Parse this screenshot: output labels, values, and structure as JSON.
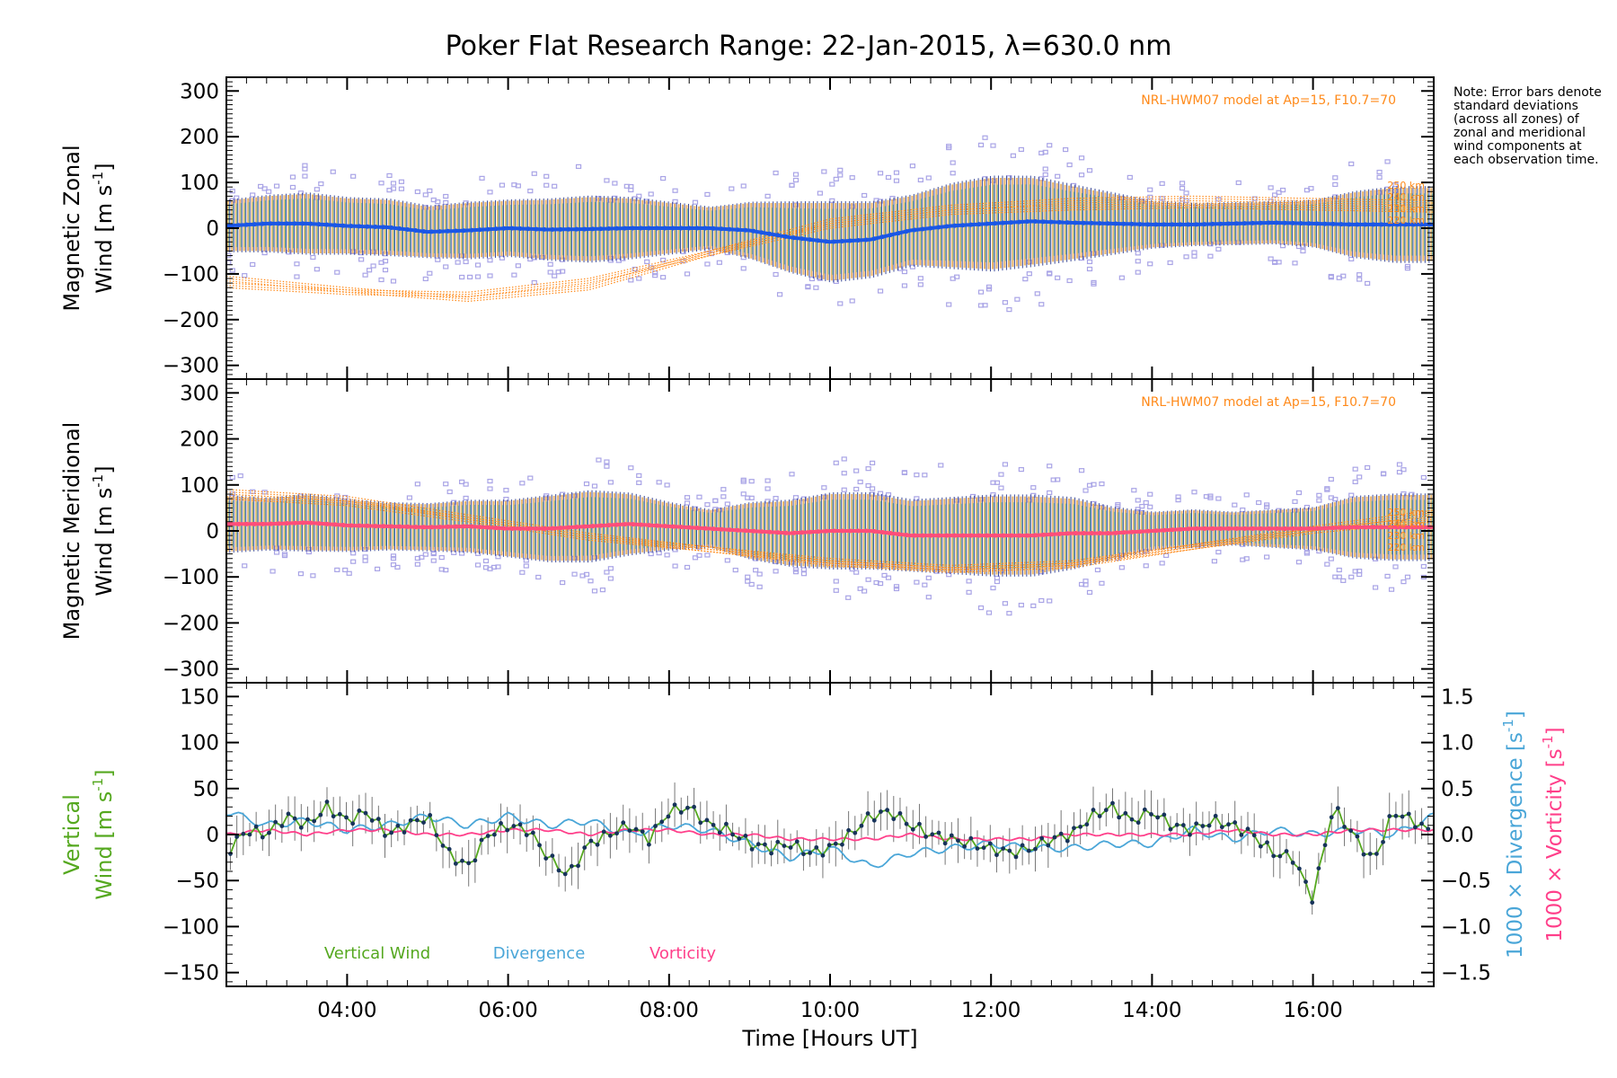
{
  "title": "Poker Flat Research Range: 22-Jan-2015, λ=630.0 nm",
  "note": "Note: Error bars denote standard deviations (across all zones) of zonal and meridional wind components at each observation time.",
  "colors": {
    "zonal": "#1a56e6",
    "zonal_light": "#4fb0e8",
    "meridional": "#ff4d7a",
    "vertical": "#55a81f",
    "divergence": "#4aa6d8",
    "vorticity": "#ff3f8a",
    "model": "#ff8a1a",
    "scatter": "#a9a4e6",
    "points": "#17335a"
  },
  "chart_data": [
    {
      "type": "scatter",
      "panel": "zonal",
      "ylabel_line1": "Magnetic Zonal",
      "ylabel_line2": "Wind [m s",
      "ylabel_sup": "-1",
      "ylabel_end": "]",
      "ylim": [
        -330,
        330
      ],
      "yticks": [
        "300",
        "200",
        "100",
        "0",
        "−100",
        "−200",
        "−300"
      ],
      "ytick_values": [
        300,
        200,
        100,
        0,
        -100,
        -200,
        -300
      ],
      "model_note": "NRL-HWM07 model at Ap=15, F10.7=70",
      "model_labels": [
        "250 km",
        "240 km",
        "230 km",
        "220 km"
      ],
      "xlim_hours": [
        2.5,
        17.5
      ],
      "series": [
        {
          "name": "Magnetic Zonal Wind",
          "x": [
            2.5,
            3.0,
            3.5,
            4.0,
            4.5,
            5.0,
            5.5,
            6.0,
            6.5,
            7.0,
            7.5,
            8.0,
            8.5,
            9.0,
            9.5,
            10.0,
            10.5,
            11.0,
            11.5,
            12.0,
            12.5,
            13.0,
            13.5,
            14.0,
            14.5,
            15.0,
            15.5,
            16.0,
            16.5,
            17.0,
            17.5
          ],
          "y": [
            5,
            10,
            10,
            5,
            2,
            -8,
            -5,
            0,
            -3,
            -2,
            0,
            0,
            0,
            -5,
            -20,
            -30,
            -25,
            -5,
            5,
            10,
            15,
            12,
            10,
            8,
            8,
            10,
            12,
            10,
            8,
            8,
            8
          ],
          "error": [
            55,
            60,
            65,
            60,
            60,
            55,
            60,
            60,
            65,
            70,
            65,
            55,
            45,
            60,
            75,
            85,
            80,
            75,
            90,
            100,
            95,
            80,
            65,
            50,
            45,
            45,
            45,
            50,
            70,
            80,
            80
          ]
        },
        {
          "name": "NRL-HWM07 220 km",
          "x": [
            2.5,
            4.0,
            5.5,
            7.0,
            8.5,
            10.0,
            11.5,
            13.0,
            14.5,
            16.0,
            17.5
          ],
          "y": [
            -130,
            -145,
            -150,
            -120,
            -60,
            0,
            30,
            40,
            45,
            40,
            35
          ]
        },
        {
          "name": "NRL-HWM07 250 km",
          "x": [
            2.5,
            4.0,
            5.5,
            7.0,
            8.5,
            10.0,
            11.5,
            13.0,
            14.5,
            16.0,
            17.5
          ],
          "y": [
            -115,
            -140,
            -160,
            -135,
            -60,
            10,
            40,
            55,
            60,
            55,
            50
          ]
        }
      ]
    },
    {
      "type": "scatter",
      "panel": "meridional",
      "ylabel_line1": "Magnetic Meridional",
      "ylabel_line2": "Wind [m s",
      "ylabel_sup": "-1",
      "ylabel_end": "]",
      "ylim": [
        -330,
        330
      ],
      "yticks": [
        "300",
        "200",
        "100",
        "0",
        "−100",
        "−200",
        "−300"
      ],
      "ytick_values": [
        300,
        200,
        100,
        0,
        -100,
        -200,
        -300
      ],
      "model_note": "NRL-HWM07 model at Ap=15, F10.7=70",
      "model_labels": [
        "250 km",
        "240 km",
        "230 km",
        "220 km"
      ],
      "xlim_hours": [
        2.5,
        17.5
      ],
      "series": [
        {
          "name": "Magnetic Meridional Wind",
          "x": [
            2.5,
            3.0,
            3.5,
            4.0,
            4.5,
            5.0,
            5.5,
            6.0,
            6.5,
            7.0,
            7.5,
            8.0,
            8.5,
            9.0,
            9.5,
            10.0,
            10.5,
            11.0,
            11.5,
            12.0,
            12.5,
            13.0,
            13.5,
            14.0,
            14.5,
            15.0,
            15.5,
            16.0,
            16.5,
            17.0,
            17.5
          ],
          "y": [
            15,
            15,
            18,
            12,
            10,
            8,
            10,
            5,
            5,
            10,
            15,
            10,
            5,
            0,
            -5,
            0,
            0,
            -10,
            -10,
            -10,
            -10,
            -5,
            -5,
            0,
            5,
            5,
            5,
            5,
            8,
            8,
            8
          ],
          "error": [
            60,
            55,
            60,
            55,
            50,
            50,
            55,
            60,
            70,
            75,
            65,
            50,
            40,
            60,
            70,
            80,
            80,
            75,
            80,
            85,
            85,
            75,
            55,
            40,
            40,
            35,
            40,
            45,
            65,
            70,
            70
          ]
        },
        {
          "name": "NRL-HWM07 220 km",
          "x": [
            2.5,
            4.0,
            5.5,
            7.0,
            8.5,
            10.0,
            11.5,
            13.0,
            14.5,
            16.0,
            17.5
          ],
          "y": [
            70,
            55,
            20,
            -20,
            -45,
            -70,
            -85,
            -75,
            -40,
            -5,
            20
          ]
        },
        {
          "name": "NRL-HWM07 250 km",
          "x": [
            2.5,
            4.0,
            5.5,
            7.0,
            8.5,
            10.0,
            11.5,
            13.0,
            14.5,
            16.0,
            17.5
          ],
          "y": [
            80,
            65,
            25,
            -15,
            -45,
            -75,
            -90,
            -80,
            -40,
            0,
            35
          ]
        }
      ]
    },
    {
      "type": "line",
      "panel": "vertical",
      "ylabel_line1": "Vertical",
      "ylabel_line2": "Wind [m s",
      "ylabel_sup": "-1",
      "ylabel_end": "]",
      "ylim": [
        -165,
        165
      ],
      "yticks": [
        "150",
        "100",
        "50",
        "0",
        "−50",
        "−100",
        "−150"
      ],
      "ytick_values": [
        150,
        100,
        50,
        0,
        -50,
        -100,
        -150
      ],
      "y2ticks": [
        "1.5",
        "1.0",
        "0.5",
        "0.0",
        "−0.5",
        "−1.0",
        "−1.5"
      ],
      "y2tick_values": [
        1.5,
        1.0,
        0.5,
        0.0,
        -0.5,
        -1.0,
        -1.5
      ],
      "y2label_div": "1000 × Divergence [s",
      "y2label_vor": "1000 × Vorticity [s",
      "y2label_sup": "-1",
      "y2label_end": "]",
      "xlim_hours": [
        2.5,
        17.5
      ],
      "xticks": [
        "04:00",
        "06:00",
        "08:00",
        "10:00",
        "12:00",
        "14:00",
        "16:00"
      ],
      "xtick_values": [
        4,
        6,
        8,
        10,
        12,
        14,
        16
      ],
      "xlabel": "Time [Hours UT]",
      "legend": [
        "Vertical Wind",
        "Divergence",
        "Vorticity"
      ],
      "series": [
        {
          "name": "Vertical Wind",
          "x": [
            2.5,
            2.75,
            3.0,
            3.25,
            3.5,
            3.75,
            4.0,
            4.25,
            4.5,
            4.75,
            5.0,
            5.25,
            5.5,
            5.75,
            6.0,
            6.25,
            6.5,
            6.75,
            7.0,
            7.25,
            7.5,
            7.75,
            8.0,
            8.25,
            8.5,
            8.75,
            9.0,
            9.25,
            9.5,
            9.75,
            10.0,
            10.25,
            10.5,
            10.75,
            11.0,
            11.25,
            11.5,
            11.75,
            12.0,
            12.25,
            12.5,
            12.75,
            13.0,
            13.25,
            13.5,
            13.75,
            14.0,
            14.25,
            14.5,
            14.75,
            15.0,
            15.25,
            15.5,
            15.75,
            16.0,
            16.25,
            16.5,
            16.75,
            17.0,
            17.25,
            17.5
          ],
          "y": [
            -20,
            5,
            0,
            20,
            10,
            30,
            15,
            25,
            0,
            10,
            20,
            -20,
            -35,
            0,
            10,
            5,
            -25,
            -45,
            -10,
            0,
            10,
            -5,
            25,
            30,
            10,
            5,
            -10,
            -15,
            -10,
            -20,
            -15,
            0,
            20,
            25,
            10,
            0,
            -5,
            -10,
            -15,
            -20,
            -15,
            -5,
            0,
            20,
            30,
            15,
            25,
            10,
            5,
            15,
            10,
            0,
            -20,
            -25,
            -70,
            30,
            0,
            -30,
            25,
            15,
            0
          ]
        },
        {
          "name": "Divergence",
          "x": [
            2.5,
            3.0,
            3.5,
            4.0,
            4.5,
            5.0,
            5.5,
            6.0,
            6.5,
            7.0,
            7.5,
            8.0,
            8.5,
            9.0,
            9.5,
            10.0,
            10.5,
            11.0,
            11.5,
            12.0,
            12.5,
            13.0,
            13.5,
            14.0,
            14.5,
            15.0,
            15.5,
            16.0,
            16.5,
            17.0,
            17.5
          ],
          "y": [
            0.25,
            0.1,
            0.15,
            0.05,
            0.1,
            0.2,
            0.1,
            0.2,
            0.1,
            0.15,
            0.0,
            0.1,
            0.05,
            -0.1,
            -0.25,
            -0.15,
            -0.35,
            -0.2,
            -0.15,
            -0.1,
            -0.15,
            -0.15,
            -0.1,
            -0.1,
            0.05,
            -0.05,
            0.05,
            0.0,
            0.05,
            0.0,
            0.2
          ]
        },
        {
          "name": "Vorticity",
          "x": [
            2.5,
            3.0,
            3.5,
            4.0,
            4.5,
            5.0,
            5.5,
            6.0,
            6.5,
            7.0,
            7.5,
            8.0,
            8.5,
            9.0,
            9.5,
            10.0,
            10.5,
            11.0,
            11.5,
            12.0,
            12.5,
            13.0,
            13.5,
            14.0,
            14.5,
            15.0,
            15.5,
            16.0,
            16.5,
            17.0,
            17.5
          ],
          "y": [
            0.0,
            0.05,
            0.0,
            0.05,
            0.05,
            0.0,
            0.0,
            0.05,
            0.05,
            0.0,
            0.05,
            0.05,
            0.0,
            0.0,
            -0.05,
            -0.05,
            -0.05,
            0.0,
            -0.05,
            -0.05,
            -0.05,
            0.0,
            0.0,
            0.0,
            0.0,
            0.05,
            0.0,
            0.0,
            0.05,
            0.05,
            0.05
          ]
        }
      ]
    }
  ]
}
